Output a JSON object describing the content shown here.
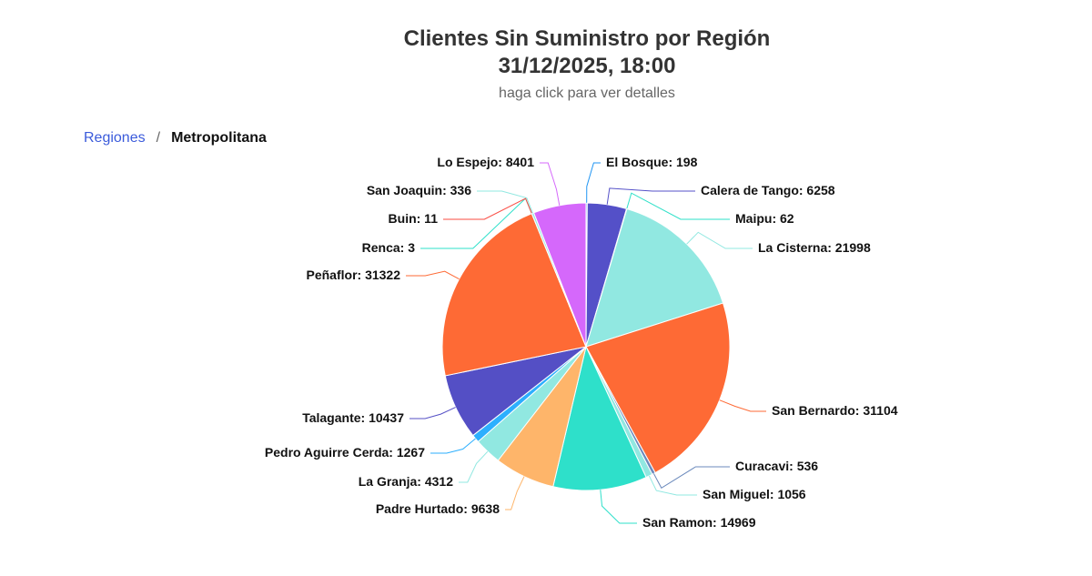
{
  "header": {
    "title_line1": "Clientes Sin Suministro por Región",
    "title_line2": "31/12/2025, 18:00",
    "subtitle": "haga click para ver detalles"
  },
  "breadcrumb": {
    "root": "Regiones",
    "separator": "/",
    "current": "Metropolitana"
  },
  "chart_data": {
    "type": "pie",
    "title": "Clientes Sin Suministro por Región 31/12/2025, 18:00",
    "subtitle": "haga click para ver detalles",
    "slices": [
      {
        "name": "El Bosque",
        "value": 198,
        "color": "#2196f3"
      },
      {
        "name": "Calera de Tango",
        "value": 6258,
        "color": "#5450c8"
      },
      {
        "name": "Maipu",
        "value": 62,
        "color": "#2ee0c8"
      },
      {
        "name": "La Cisterna",
        "value": 21998,
        "color": "#91e8e1"
      },
      {
        "name": "San Bernardo",
        "value": 31104,
        "color": "#fe6a35"
      },
      {
        "name": "Curacavi",
        "value": 536,
        "color": "#6b8abc"
      },
      {
        "name": "San Miguel",
        "value": 1056,
        "color": "#91e8e1"
      },
      {
        "name": "San Ramon",
        "value": 14969,
        "color": "#2ee0ca"
      },
      {
        "name": "Padre Hurtado",
        "value": 9638,
        "color": "#feb56a"
      },
      {
        "name": "La Granja",
        "value": 4312,
        "color": "#91e8e1"
      },
      {
        "name": "Pedro Aguirre Cerda",
        "value": 1267,
        "color": "#2caffe"
      },
      {
        "name": "Talagante",
        "value": 10437,
        "color": "#544fc5"
      },
      {
        "name": "Peñaflor",
        "value": 31322,
        "color": "#fe6a35"
      },
      {
        "name": "Renca",
        "value": 3,
        "color": "#2ee0ca"
      },
      {
        "name": "Buin",
        "value": 11,
        "color": "#fa4b42"
      },
      {
        "name": "San Joaquin",
        "value": 336,
        "color": "#91e8e1"
      },
      {
        "name": "Lo Espejo",
        "value": 8401,
        "color": "#d568fb"
      }
    ]
  }
}
